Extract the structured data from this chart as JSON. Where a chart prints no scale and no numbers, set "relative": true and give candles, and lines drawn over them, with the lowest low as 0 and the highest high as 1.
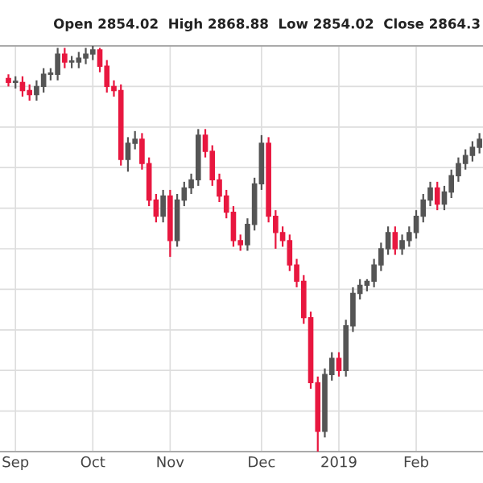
{
  "chart_data": {
    "type": "candlestick",
    "relative": true,
    "grid": true,
    "annotations": [
      "Open 2854.02  High 2868.88  Low 2854.02  Close 2864.3"
    ],
    "categories": [
      null,
      "Sep",
      null,
      null,
      null,
      null,
      null,
      null,
      null,
      null,
      null,
      null,
      "Oct",
      null,
      null,
      null,
      null,
      null,
      null,
      null,
      null,
      null,
      null,
      "Nov",
      null,
      null,
      null,
      null,
      null,
      null,
      null,
      null,
      null,
      null,
      null,
      null,
      "Dec",
      null,
      null,
      null,
      null,
      null,
      null,
      null,
      null,
      null,
      null,
      "2019",
      null,
      null,
      null,
      null,
      null,
      null,
      null,
      null,
      null,
      null,
      "Feb",
      null,
      null,
      null,
      null,
      null,
      null,
      null,
      null,
      null
    ],
    "ohlc": [
      [
        0.92,
        0.93,
        0.9,
        0.91
      ],
      [
        0.91,
        0.925,
        0.895,
        0.91
      ],
      [
        0.91,
        0.925,
        0.875,
        0.89
      ],
      [
        0.89,
        0.905,
        0.865,
        0.88
      ],
      [
        0.88,
        0.915,
        0.865,
        0.9
      ],
      [
        0.9,
        0.945,
        0.885,
        0.93
      ],
      [
        0.93,
        0.945,
        0.915,
        0.93
      ],
      [
        0.93,
        0.995,
        0.915,
        0.98
      ],
      [
        0.98,
        0.995,
        0.945,
        0.96
      ],
      [
        0.96,
        0.975,
        0.945,
        0.96
      ],
      [
        0.96,
        0.985,
        0.945,
        0.97
      ],
      [
        0.97,
        0.995,
        0.955,
        0.98
      ],
      [
        0.98,
        1,
        0.965,
        0.99
      ],
      [
        0.99,
        0.995,
        0.935,
        0.95
      ],
      [
        0.95,
        0.965,
        0.885,
        0.9
      ],
      [
        0.9,
        0.915,
        0.875,
        0.89
      ],
      [
        0.89,
        0.905,
        0.705,
        0.72
      ],
      [
        0.72,
        0.775,
        0.69,
        0.76
      ],
      [
        0.76,
        0.79,
        0.745,
        0.77
      ],
      [
        0.77,
        0.785,
        0.695,
        0.71
      ],
      [
        0.71,
        0.725,
        0.605,
        0.62
      ],
      [
        0.62,
        0.635,
        0.565,
        0.58
      ],
      [
        0.58,
        0.645,
        0.565,
        0.63
      ],
      [
        0.63,
        0.645,
        0.48,
        0.52
      ],
      [
        0.52,
        0.635,
        0.505,
        0.62
      ],
      [
        0.62,
        0.665,
        0.605,
        0.65
      ],
      [
        0.65,
        0.685,
        0.635,
        0.67
      ],
      [
        0.67,
        0.795,
        0.655,
        0.78
      ],
      [
        0.78,
        0.795,
        0.725,
        0.74
      ],
      [
        0.74,
        0.755,
        0.655,
        0.67
      ],
      [
        0.67,
        0.685,
        0.615,
        0.63
      ],
      [
        0.63,
        0.645,
        0.575,
        0.59
      ],
      [
        0.59,
        0.605,
        0.505,
        0.52
      ],
      [
        0.52,
        0.535,
        0.495,
        0.51
      ],
      [
        0.51,
        0.575,
        0.495,
        0.56
      ],
      [
        0.56,
        0.675,
        0.545,
        0.66
      ],
      [
        0.66,
        0.78,
        0.645,
        0.76
      ],
      [
        0.76,
        0.775,
        0.565,
        0.58
      ],
      [
        0.58,
        0.595,
        0.5,
        0.54
      ],
      [
        0.54,
        0.555,
        0.505,
        0.52
      ],
      [
        0.52,
        0.535,
        0.445,
        0.46
      ],
      [
        0.46,
        0.475,
        0.405,
        0.42
      ],
      [
        0.42,
        0.435,
        0.315,
        0.33
      ],
      [
        0.33,
        0.345,
        0.155,
        0.17
      ],
      [
        0.17,
        0.185,
        0,
        0.05
      ],
      [
        0.05,
        0.205,
        0.035,
        0.19
      ],
      [
        0.19,
        0.245,
        0.175,
        0.23
      ],
      [
        0.23,
        0.245,
        0.185,
        0.2
      ],
      [
        0.2,
        0.325,
        0.185,
        0.31
      ],
      [
        0.31,
        0.405,
        0.295,
        0.39
      ],
      [
        0.39,
        0.425,
        0.375,
        0.41
      ],
      [
        0.41,
        0.425,
        0.395,
        0.42
      ],
      [
        0.42,
        0.475,
        0.405,
        0.46
      ],
      [
        0.46,
        0.515,
        0.445,
        0.5
      ],
      [
        0.5,
        0.555,
        0.485,
        0.54
      ],
      [
        0.54,
        0.555,
        0.485,
        0.5
      ],
      [
        0.5,
        0.535,
        0.485,
        0.52
      ],
      [
        0.52,
        0.555,
        0.505,
        0.54
      ],
      [
        0.54,
        0.595,
        0.525,
        0.58
      ],
      [
        0.58,
        0.635,
        0.565,
        0.62
      ],
      [
        0.62,
        0.665,
        0.605,
        0.65
      ],
      [
        0.65,
        0.665,
        0.595,
        0.61
      ],
      [
        0.61,
        0.655,
        0.595,
        0.64
      ],
      [
        0.64,
        0.695,
        0.625,
        0.68
      ],
      [
        0.68,
        0.725,
        0.665,
        0.71
      ],
      [
        0.71,
        0.745,
        0.695,
        0.73
      ],
      [
        0.73,
        0.765,
        0.715,
        0.75
      ],
      [
        0.75,
        0.785,
        0.735,
        0.77
      ]
    ],
    "colors": [
      "#e8173f",
      "#555555",
      "#e8173f",
      "#e8173f",
      "#555555",
      "#555555",
      "#555555",
      "#555555",
      "#e8173f",
      "#555555",
      "#555555",
      "#555555",
      "#555555",
      "#e8173f",
      "#e8173f",
      "#e8173f",
      "#e8173f",
      "#555555",
      "#555555",
      "#e8173f",
      "#e8173f",
      "#e8173f",
      "#555555",
      "#e8173f",
      "#555555",
      "#555555",
      "#555555",
      "#555555",
      "#e8173f",
      "#e8173f",
      "#e8173f",
      "#e8173f",
      "#e8173f",
      "#e8173f",
      "#555555",
      "#555555",
      "#555555",
      "#e8173f",
      "#e8173f",
      "#e8173f",
      "#e8173f",
      "#e8173f",
      "#e8173f",
      "#e8173f",
      "#e8173f",
      "#555555",
      "#555555",
      "#e8173f",
      "#555555",
      "#555555",
      "#555555",
      "#555555",
      "#555555",
      "#555555",
      "#555555",
      "#e8173f",
      "#555555",
      "#555555",
      "#555555",
      "#555555",
      "#555555",
      "#e8173f",
      "#555555",
      "#555555",
      "#555555",
      "#555555",
      "#555555",
      "#555555"
    ]
  }
}
